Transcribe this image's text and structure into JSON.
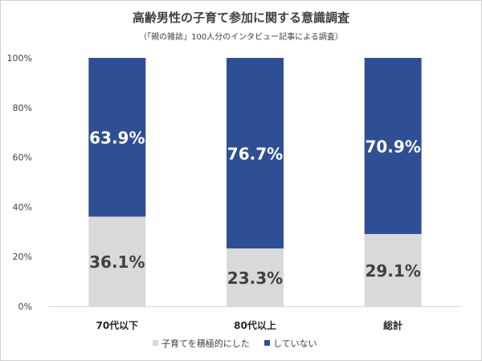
{
  "chart_data": {
    "type": "bar",
    "stacked": true,
    "title": "高齢男性の子育て参加に関する意識調査",
    "subtitle": "（「親の雑誌」100人分のインタビュー記事による調査）",
    "categories": [
      "70代以下",
      "80代以上",
      "総計"
    ],
    "series": [
      {
        "name": "子育てを積極的にした",
        "color": "#d9d9d9",
        "values": [
          36.1,
          23.3,
          29.1
        ],
        "labels": [
          "36.1%",
          "23.3%",
          "29.1%"
        ]
      },
      {
        "name": "していない",
        "color": "#2f4f95",
        "values": [
          63.9,
          76.7,
          70.9
        ],
        "labels": [
          "63.9%",
          "76.7%",
          "70.9%"
        ]
      }
    ],
    "y_ticks": [
      "0%",
      "20%",
      "40%",
      "60%",
      "80%",
      "100%"
    ],
    "ylim": [
      0,
      100
    ],
    "grid": false,
    "legend_position": "bottom"
  }
}
